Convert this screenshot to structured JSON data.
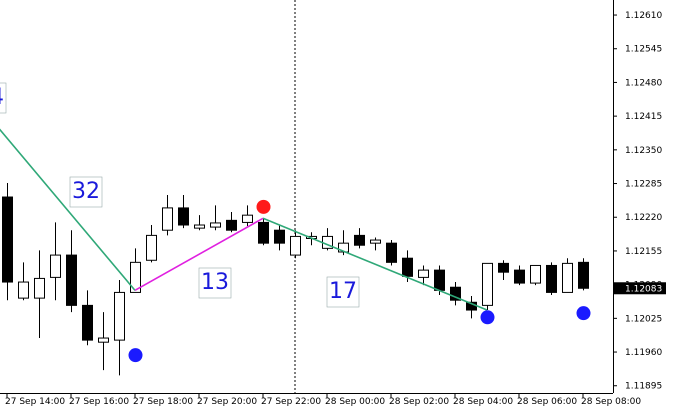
{
  "chart_data": {
    "type": "candlestick",
    "categories": [
      "27 Sep 14:00",
      null,
      null,
      null,
      "27 Sep 16:00",
      null,
      null,
      null,
      "27 Sep 18:00",
      null,
      null,
      null,
      "27 Sep 20:00",
      null,
      null,
      null,
      "27 Sep 22:00",
      null,
      null,
      null,
      "28 Sep 00:00",
      null,
      null,
      null,
      "28 Sep 02:00",
      null,
      null,
      null,
      "28 Sep 04:00",
      null,
      null,
      null,
      "28 Sep 06:00",
      null,
      null,
      null,
      "28 Sep 08:00"
    ],
    "open": [
      1.12259,
      1.12064,
      1.12064,
      1.12104,
      1.12147,
      1.1205,
      1.11979,
      1.11983,
      1.12075,
      1.12137,
      1.12195,
      1.12238,
      1.12199,
      1.12201,
      1.12214,
      1.1221,
      1.1221,
      1.12195,
      1.12147,
      1.12179,
      1.1216,
      1.12153,
      1.12185,
      1.1217,
      1.1217,
      1.12141,
      1.12104,
      1.12118,
      1.12085,
      1.12056,
      1.1205,
      1.12131,
      1.12118,
      1.12093,
      1.12127,
      1.12075,
      1.12133
    ],
    "high": [
      1.12286,
      1.12133,
      1.12156,
      1.1221,
      1.12195,
      1.12079,
      1.12037,
      1.12099,
      1.1216,
      1.12205,
      1.12263,
      1.12263,
      1.12224,
      1.12243,
      1.1223,
      1.12243,
      1.12218,
      1.12205,
      1.12195,
      1.12191,
      1.12199,
      1.12195,
      1.12199,
      1.12181,
      1.12176,
      1.12156,
      1.12127,
      1.12127,
      1.12095,
      1.12068,
      1.12131,
      1.12137,
      1.12127,
      1.12127,
      1.12133,
      1.12141,
      1.12141
    ],
    "low": [
      1.1206,
      1.1206,
      1.11987,
      1.1206,
      1.12037,
      1.11973,
      1.11925,
      1.11915,
      1.12079,
      1.12133,
      1.12185,
      1.12199,
      1.12195,
      1.12195,
      1.12191,
      1.12203,
      1.12166,
      1.12156,
      1.12141,
      1.12166,
      1.12156,
      1.12147,
      1.1216,
      1.12156,
      1.12127,
      1.12095,
      1.12089,
      1.1207,
      1.1205,
      1.12025,
      1.12041,
      1.12099,
      1.12089,
      1.12089,
      1.1207,
      1.12075,
      1.12079
    ],
    "close": [
      1.12095,
      1.12095,
      1.12102,
      1.12147,
      1.1205,
      1.11983,
      1.11987,
      1.12075,
      1.12133,
      1.12185,
      1.12238,
      1.12205,
      1.12205,
      1.12209,
      1.12195,
      1.12224,
      1.1217,
      1.1217,
      1.12183,
      1.12183,
      1.12183,
      1.1217,
      1.12166,
      1.12176,
      1.12133,
      1.12106,
      1.12118,
      1.12079,
      1.1206,
      1.12041,
      1.12131,
      1.12114,
      1.12093,
      1.12127,
      1.12075,
      1.12131,
      1.12083
    ],
    "ylim": [
      1.11881,
      1.12639
    ],
    "yticks": [
      {
        "value": 1.1261,
        "label": "1.12610"
      },
      {
        "value": 1.12545,
        "label": "1.12545"
      },
      {
        "value": 1.1248,
        "label": "1.12480"
      },
      {
        "value": 1.12415,
        "label": "1.12415"
      },
      {
        "value": 1.1235,
        "label": "1.12350"
      },
      {
        "value": 1.12285,
        "label": "1.12285"
      },
      {
        "value": 1.1222,
        "label": "1.12220"
      },
      {
        "value": 1.12155,
        "label": "1.12155"
      },
      {
        "value": 1.1209,
        "label": "1.12090"
      },
      {
        "value": 1.12025,
        "label": "1.12025"
      },
      {
        "value": 1.1196,
        "label": "1.11960"
      },
      {
        "value": 1.11895,
        "label": "1.11895"
      }
    ],
    "current_price": 1.12083,
    "zigzag": {
      "vertices": [
        {
          "at": -2,
          "value": 1.12446
        },
        {
          "at": 8,
          "value": 1.12079
        },
        {
          "at": 16,
          "value": 1.12218
        },
        {
          "at": 30,
          "value": 1.12041
        }
      ],
      "colors": [
        "#2fa878",
        "#e020e0",
        "#2fa878"
      ]
    },
    "wave_labels": [
      "4",
      "32",
      "13",
      "17"
    ],
    "markers": [
      {
        "at": 8,
        "value": 1.11954,
        "color": "#1a1aff"
      },
      {
        "at": 16,
        "value": 1.1224,
        "color": "#ff1a1a"
      },
      {
        "at": 30,
        "value": 1.12027,
        "color": "#1a1aff"
      },
      {
        "at": 36,
        "value": 1.12035,
        "color": "#1a1aff"
      }
    ],
    "cursor_line": {
      "at": 18
    }
  }
}
